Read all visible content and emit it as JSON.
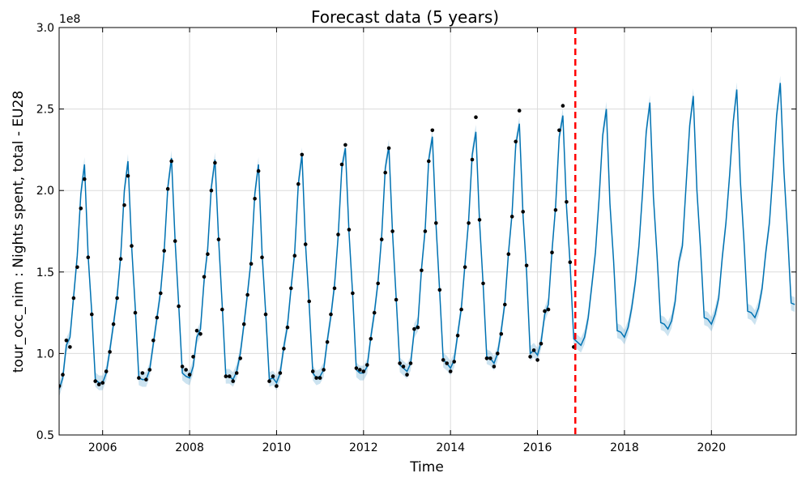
{
  "chart_data": {
    "type": "line",
    "title": "Forecast data (5 years)",
    "xlabel": "Time",
    "ylabel": "tour_occ_nim : Nights spent, total - EU28",
    "y_offset_label": "1e8",
    "xlim": [
      2005.0,
      2021.95
    ],
    "ylim": [
      0.5,
      3.0
    ],
    "x_ticks": [
      2006,
      2008,
      2010,
      2012,
      2014,
      2016,
      2018,
      2020
    ],
    "x_tick_labels": [
      "2006",
      "2008",
      "2010",
      "2012",
      "2014",
      "2016",
      "2018",
      "2020"
    ],
    "y_ticks": [
      0.5,
      1.0,
      1.5,
      2.0,
      2.5,
      3.0
    ],
    "y_tick_labels": [
      "0.5",
      "1.0",
      "1.5",
      "2.0",
      "2.5",
      "3.0"
    ],
    "grid": true,
    "forecast_start": 2016.87,
    "colors": {
      "forecast_line": "#0072b2",
      "uncertainty_band": "#0072b2",
      "observed_points": "#000000",
      "changepoint_line": "#ff0000",
      "grid": "#dcdcdc"
    },
    "series": [
      {
        "name": "observed",
        "kind": "scatter",
        "monthly_start": 2005.0,
        "values": [
          0.8,
          0.87,
          1.08,
          1.04,
          1.34,
          1.53,
          1.89,
          2.07,
          1.59,
          1.24,
          0.83,
          0.81,
          0.82,
          0.89,
          1.01,
          1.18,
          1.34,
          1.58,
          1.91,
          2.09,
          1.66,
          1.25,
          0.85,
          0.88,
          0.84,
          0.9,
          1.08,
          1.22,
          1.37,
          1.63,
          2.01,
          2.18,
          1.69,
          1.29,
          0.92,
          0.9,
          0.87,
          0.98,
          1.14,
          1.12,
          1.47,
          1.61,
          2.0,
          2.17,
          1.7,
          1.27,
          0.86,
          0.86,
          0.83,
          0.88,
          0.97,
          1.18,
          1.36,
          1.55,
          1.95,
          2.12,
          1.59,
          1.24,
          0.83,
          0.86,
          0.8,
          0.88,
          1.03,
          1.16,
          1.4,
          1.6,
          2.04,
          2.22,
          1.67,
          1.32,
          0.89,
          0.85,
          0.85,
          0.9,
          1.07,
          1.24,
          1.4,
          1.73,
          2.16,
          2.28,
          1.76,
          1.37,
          0.91,
          0.9,
          0.89,
          0.93,
          1.09,
          1.25,
          1.43,
          1.7,
          2.11,
          2.26,
          1.75,
          1.33,
          0.94,
          0.92,
          0.87,
          0.94,
          1.15,
          1.16,
          1.51,
          1.75,
          2.18,
          2.37,
          1.8,
          1.39,
          0.96,
          0.94,
          0.89,
          0.95,
          1.11,
          1.27,
          1.53,
          1.8,
          2.19,
          2.45,
          1.82,
          1.43,
          0.97,
          0.97,
          0.92,
          1.0,
          1.12,
          1.3,
          1.61,
          1.84,
          2.3,
          2.49,
          1.87,
          1.54,
          0.98,
          1.02,
          0.96,
          1.06,
          1.26,
          1.27,
          1.62,
          1.88,
          2.37,
          2.52,
          1.93,
          1.56,
          1.04
        ]
      },
      {
        "name": "forecast",
        "kind": "line",
        "monthly_start": 2005.0,
        "values": [
          0.78,
          0.85,
          1.05,
          1.1,
          1.35,
          1.6,
          1.98,
          2.16,
          1.6,
          1.25,
          0.84,
          0.82,
          0.82,
          0.88,
          1.02,
          1.18,
          1.35,
          1.6,
          2.0,
          2.18,
          1.66,
          1.28,
          0.85,
          0.84,
          0.84,
          0.9,
          1.06,
          1.22,
          1.38,
          1.63,
          2.02,
          2.2,
          1.69,
          1.3,
          0.88,
          0.86,
          0.85,
          0.92,
          1.1,
          1.15,
          1.45,
          1.64,
          2.02,
          2.19,
          1.7,
          1.3,
          0.86,
          0.86,
          0.84,
          0.89,
          1.0,
          1.18,
          1.37,
          1.58,
          1.98,
          2.16,
          1.62,
          1.25,
          0.84,
          0.85,
          0.82,
          0.88,
          1.04,
          1.17,
          1.4,
          1.62,
          2.04,
          2.22,
          1.67,
          1.3,
          0.88,
          0.85,
          0.86,
          0.9,
          1.08,
          1.23,
          1.42,
          1.72,
          2.14,
          2.26,
          1.74,
          1.36,
          0.9,
          0.88,
          0.88,
          0.92,
          1.1,
          1.25,
          1.44,
          1.72,
          2.14,
          2.27,
          1.74,
          1.34,
          0.93,
          0.91,
          0.89,
          0.94,
          1.14,
          1.18,
          1.52,
          1.76,
          2.19,
          2.33,
          1.79,
          1.38,
          0.96,
          0.94,
          0.91,
          0.96,
          1.12,
          1.28,
          1.55,
          1.82,
          2.22,
          2.36,
          1.81,
          1.42,
          0.98,
          0.97,
          0.94,
          1.0,
          1.14,
          1.31,
          1.62,
          1.86,
          2.28,
          2.41,
          1.85,
          1.5,
          1.0,
          1.02,
          0.99,
          1.07,
          1.24,
          1.3,
          1.63,
          1.9,
          2.33,
          2.46,
          1.9,
          1.55,
          1.09,
          1.07,
          1.05,
          1.1,
          1.22,
          1.42,
          1.62,
          1.95,
          2.34,
          2.5,
          1.92,
          1.57,
          1.14,
          1.13,
          1.1,
          1.16,
          1.28,
          1.44,
          1.66,
          1.99,
          2.36,
          2.54,
          1.96,
          1.6,
          1.19,
          1.18,
          1.15,
          1.2,
          1.32,
          1.56,
          1.66,
          2.03,
          2.4,
          2.58,
          2.0,
          1.64,
          1.22,
          1.21,
          1.18,
          1.24,
          1.34,
          1.59,
          1.8,
          2.09,
          2.42,
          2.62,
          2.05,
          1.68,
          1.26,
          1.25,
          1.22,
          1.28,
          1.4,
          1.62,
          1.8,
          2.12,
          2.46,
          2.66,
          2.12,
          1.74,
          1.31,
          1.3
        ]
      },
      {
        "name": "uncertainty",
        "kind": "band",
        "half_width": 0.045
      }
    ]
  }
}
